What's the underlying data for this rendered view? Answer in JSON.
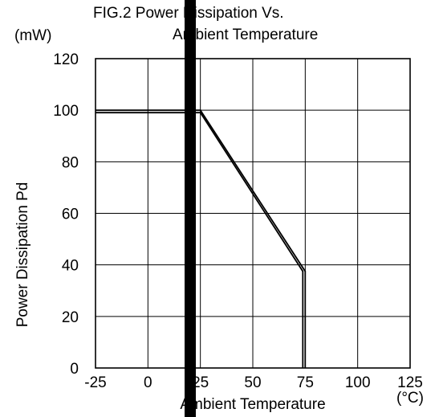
{
  "chart_data": {
    "type": "line",
    "title_line1": "FIG.2  Power Dissipation Vs.",
    "title_line2": "Ambient Temperature",
    "ylabel": "Power Dissipation Pd",
    "yunit": "(mW)",
    "xlabel": "Ambient Temperature",
    "xunit": "(°C)",
    "ylim": [
      0,
      120
    ],
    "yticks": [
      0,
      20,
      40,
      60,
      80,
      100,
      120
    ],
    "xlim": [
      -25,
      125
    ],
    "xtick_labels": [
      "-25",
      "0",
      "25",
      "50",
      "75",
      "100",
      "125"
    ],
    "grid": true,
    "series": [
      {
        "x": [
          -25,
          25,
          75,
          75
        ],
        "y": [
          100,
          100,
          37.5,
          0
        ]
      }
    ]
  }
}
